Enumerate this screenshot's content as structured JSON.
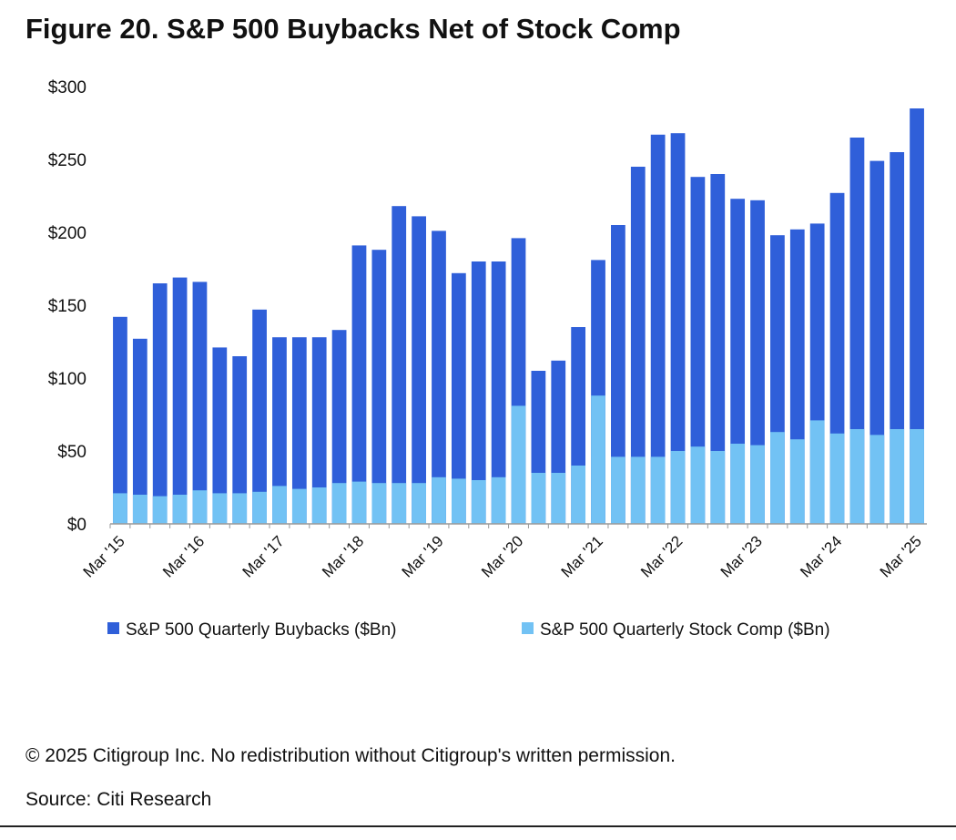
{
  "chart_data": {
    "type": "bar",
    "title": "Figure 20. S&P 500 Buybacks Net of Stock Comp",
    "categories": [
      "Mar '15",
      null,
      null,
      null,
      "Mar '16",
      null,
      null,
      null,
      "Mar '17",
      null,
      null,
      null,
      "Mar '18",
      null,
      null,
      null,
      "Mar '19",
      null,
      null,
      null,
      "Mar '20",
      null,
      null,
      null,
      "Mar '21",
      null,
      null,
      null,
      "Mar '22",
      null,
      null,
      null,
      "Mar '23",
      null,
      null,
      null,
      "Mar '24",
      null,
      null,
      null,
      "Mar '25"
    ],
    "series": [
      {
        "name": "S&P 500 Quarterly Buybacks ($Bn)",
        "color": "#2f5fd9",
        "values": [
          142,
          127,
          165,
          169,
          166,
          121,
          115,
          147,
          128,
          128,
          128,
          133,
          191,
          188,
          218,
          211,
          201,
          172,
          180,
          180,
          196,
          105,
          112,
          135,
          181,
          205,
          245,
          267,
          268,
          238,
          240,
          223,
          222,
          198,
          202,
          206,
          227,
          265,
          249,
          255,
          285
        ]
      },
      {
        "name": "S&P 500 Quarterly Stock Comp ($Bn)",
        "color": "#72c2f4",
        "values": [
          21,
          20,
          19,
          20,
          23,
          21,
          21,
          22,
          26,
          24,
          25,
          28,
          29,
          28,
          28,
          28,
          32,
          31,
          30,
          32,
          81,
          35,
          35,
          40,
          88,
          46,
          46,
          46,
          50,
          53,
          50,
          55,
          54,
          63,
          58,
          71,
          62,
          65,
          61,
          65,
          65
        ]
      }
    ],
    "ylim": [
      0,
      300
    ],
    "yticks": [
      {
        "value": 0,
        "label": "$0"
      },
      {
        "value": 50,
        "label": "$50"
      },
      {
        "value": 100,
        "label": "$100"
      },
      {
        "value": 150,
        "label": "$150"
      },
      {
        "value": 200,
        "label": "$200"
      },
      {
        "value": 250,
        "label": "$250"
      },
      {
        "value": 300,
        "label": "$300"
      }
    ],
    "grid": false,
    "legend": "bottom"
  },
  "footer": {
    "copyright": "© 2025 Citigroup Inc. No redistribution without Citigroup's written permission.",
    "source": "Source: Citi Research"
  }
}
